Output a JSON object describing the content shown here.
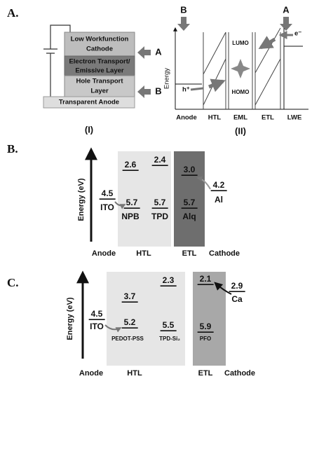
{
  "panel_a": {
    "label": "A.",
    "stack": {
      "cathode": [
        "Low Workfunction",
        "Cathode"
      ],
      "emissive": [
        "Electron Transport/",
        "Emissive Layer"
      ],
      "hole": [
        "Hole Transport",
        "Layer"
      ],
      "anode": "Transparent Anode",
      "pointer_a": "A",
      "pointer_b": "B",
      "caption": "(I)"
    },
    "bands": {
      "pointer_b": "B",
      "pointer_a": "A",
      "axis": "Energy",
      "lumo": "LUMO",
      "homo": "HOMO",
      "hole": "h⁺",
      "electron": "e⁻",
      "layers": [
        "Anode",
        "HTL",
        "EML",
        "ETL",
        "LWE"
      ],
      "caption": "(II)"
    }
  },
  "panel_b": {
    "label": "B.",
    "axis": "Energy (eV)",
    "levels": [
      "2.6",
      "2.4",
      "3.0",
      "4.2",
      "4.5",
      "5.7",
      "5.7",
      "5.7"
    ],
    "materials": [
      "ITO",
      "NPB",
      "TPD",
      "Alq",
      "Al"
    ],
    "layers": [
      "Anode",
      "HTL",
      "ETL",
      "Cathode"
    ]
  },
  "panel_c": {
    "label": "C.",
    "axis": "Energy (eV)",
    "levels": [
      "2.3",
      "3.7",
      "2.1",
      "2.9",
      "4.5",
      "5.2",
      "5.5",
      "5.9"
    ],
    "materials": [
      "ITO",
      "PEDOT-PSS",
      "TPD-Si₂",
      "PFO",
      "Ca"
    ],
    "layers": [
      "Anode",
      "HTL",
      "ETL",
      "Cathode"
    ]
  }
}
